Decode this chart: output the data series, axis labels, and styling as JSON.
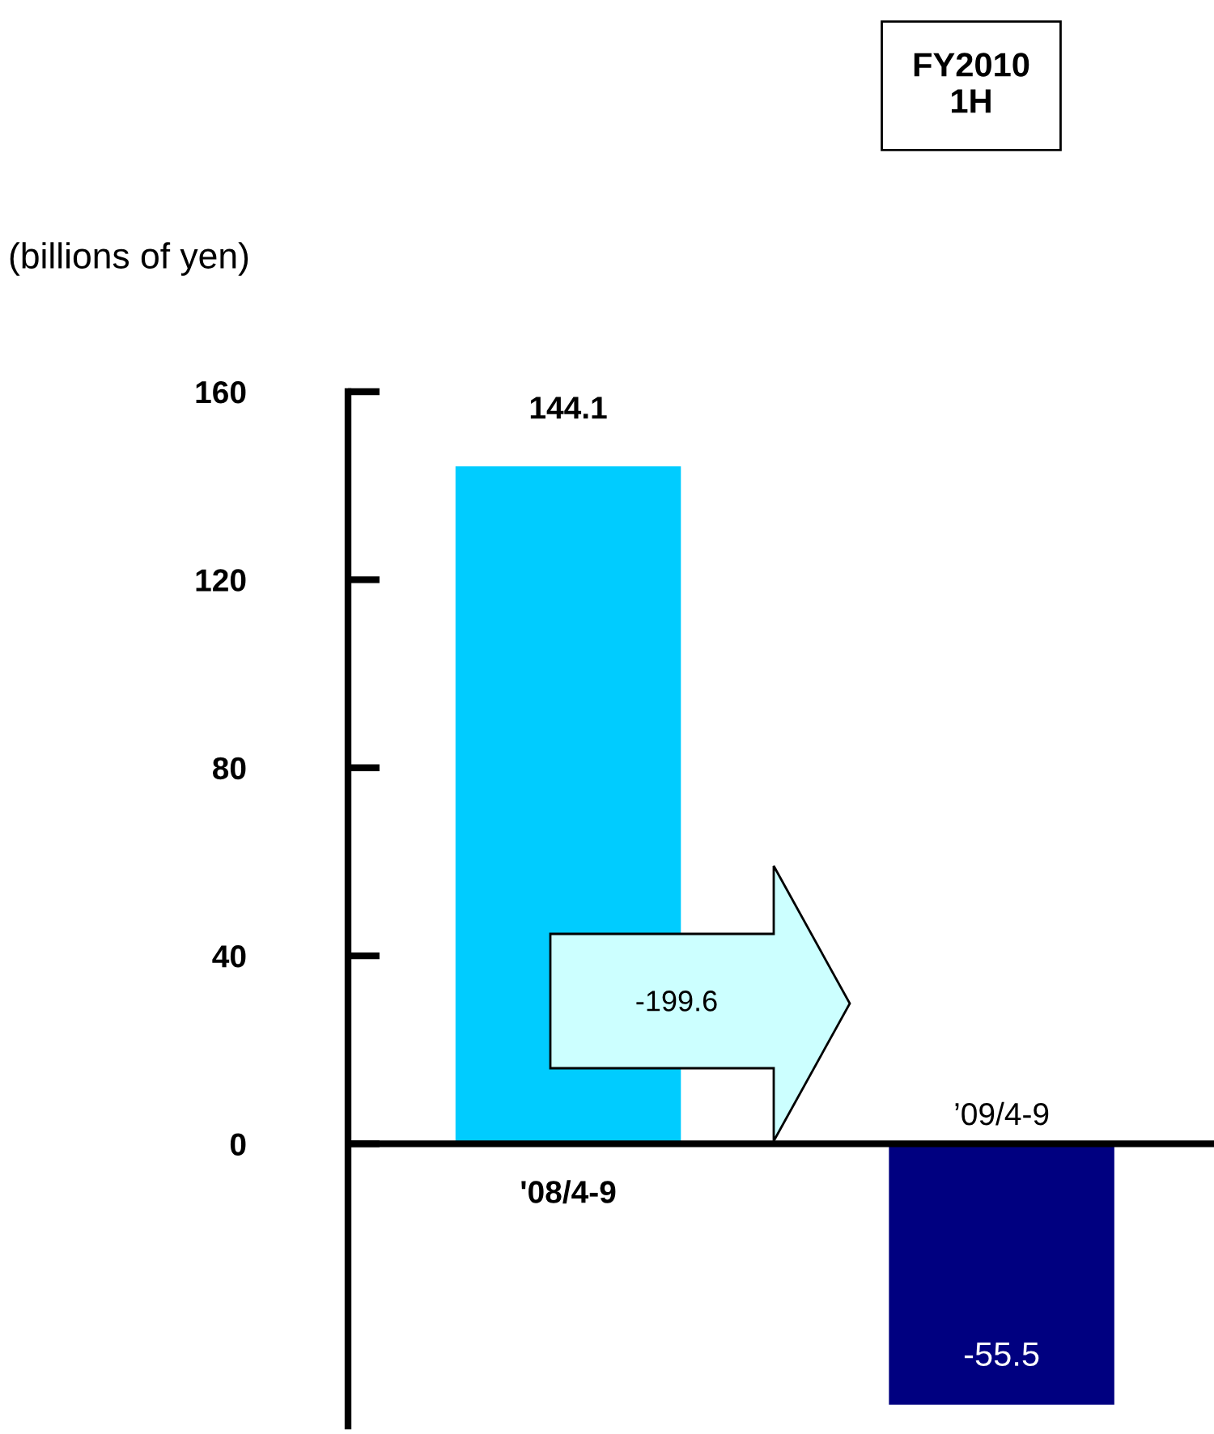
{
  "chart_data": {
    "type": "bar",
    "title": "FY2010\n1H",
    "ylabel": "(billions of yen)",
    "categories": [
      "'08/4-9",
      "’09/4-9"
    ],
    "values": [
      144.1,
      -55.5
    ],
    "colors": [
      "#00ccff",
      "#000080"
    ],
    "ylim": [
      -60,
      160
    ],
    "yticks": [
      0,
      40,
      80,
      120,
      160
    ],
    "data_labels": true,
    "annotations": [
      "-199.6"
    ]
  }
}
